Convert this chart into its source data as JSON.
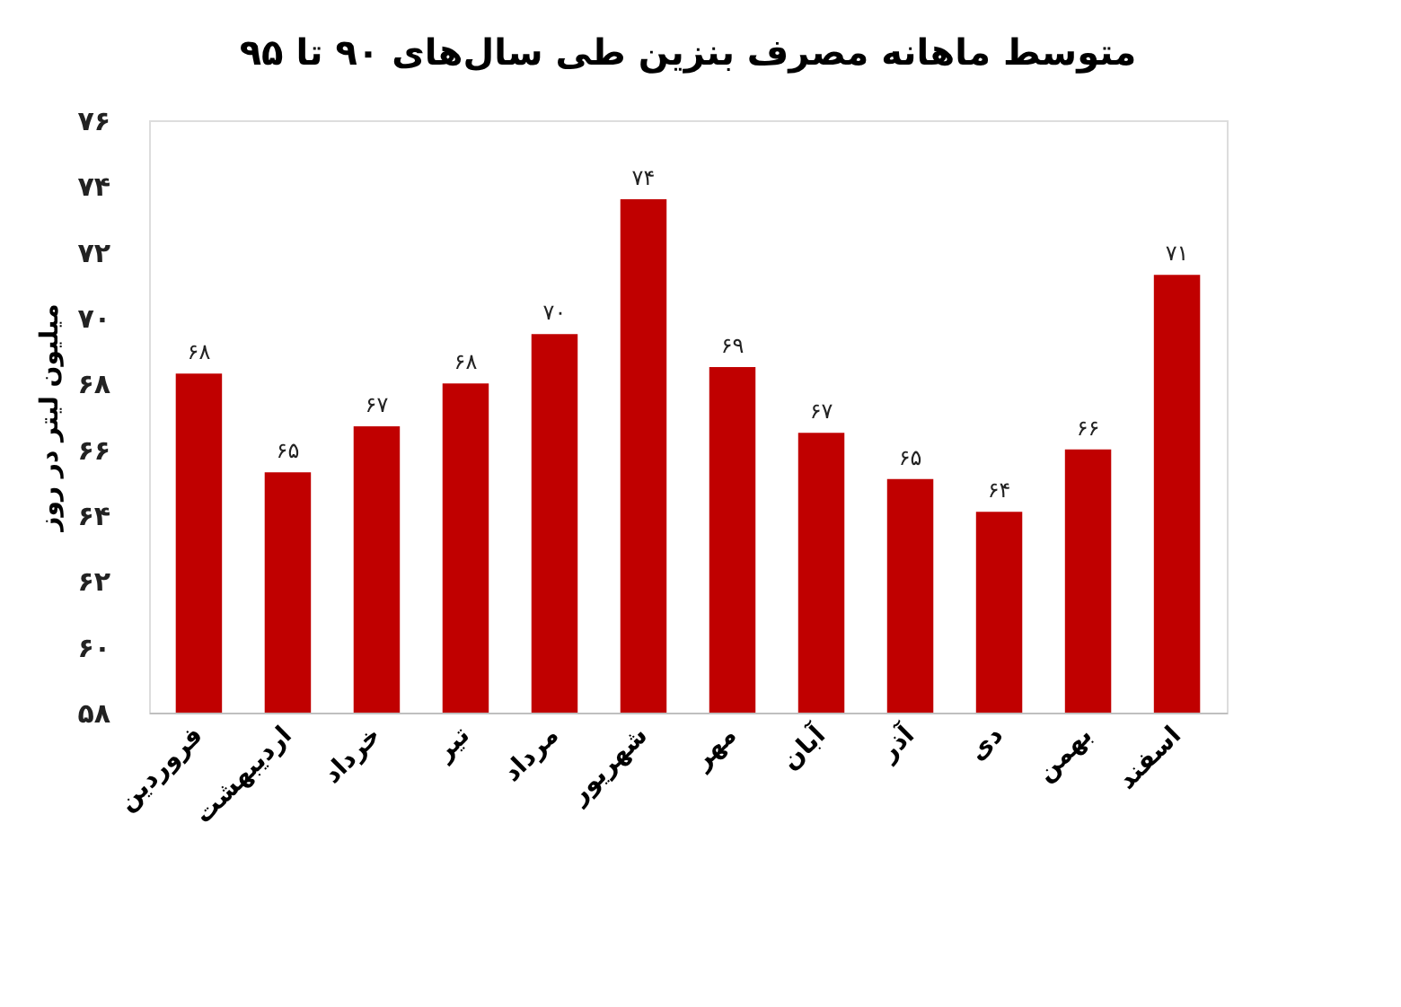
{
  "chart_data": {
    "type": "bar",
    "title": "متوسط ماهانه مصرف بنزین طی سال‌های ۹۰ تا ۹۵",
    "ylabel": "میلیون لیتر در روز",
    "categories": [
      "فروردین",
      "اردیبهشت",
      "خرداد",
      "تیر",
      "مرداد",
      "شهریور",
      "مهر",
      "آبان",
      "آذر",
      "دی",
      "بهمن",
      "اسفند"
    ],
    "values": [
      68.3,
      65.3,
      66.7,
      68.0,
      69.5,
      73.6,
      68.5,
      66.5,
      65.1,
      64.1,
      66.0,
      71.3
    ],
    "value_labels": [
      "۶۸",
      "۶۵",
      "۶۷",
      "۶۸",
      "۷۰",
      "۷۴",
      "۶۹",
      "۶۷",
      "۶۵",
      "۶۴",
      "۶۶",
      "۷۱"
    ],
    "color": "#c00000",
    "ylim": [
      58,
      76
    ],
    "yticks": [
      {
        "value": 58,
        "label": "۵۸"
      },
      {
        "value": 60,
        "label": "۶۰"
      },
      {
        "value": 62,
        "label": "۶۲"
      },
      {
        "value": 64,
        "label": "۶۴"
      },
      {
        "value": 66,
        "label": "۶۶"
      },
      {
        "value": 68,
        "label": "۶۸"
      },
      {
        "value": 70,
        "label": "۷۰"
      },
      {
        "value": 72,
        "label": "۷۲"
      },
      {
        "value": 74,
        "label": "۷۴"
      },
      {
        "value": 76,
        "label": "۷۶"
      }
    ],
    "grid": false
  }
}
